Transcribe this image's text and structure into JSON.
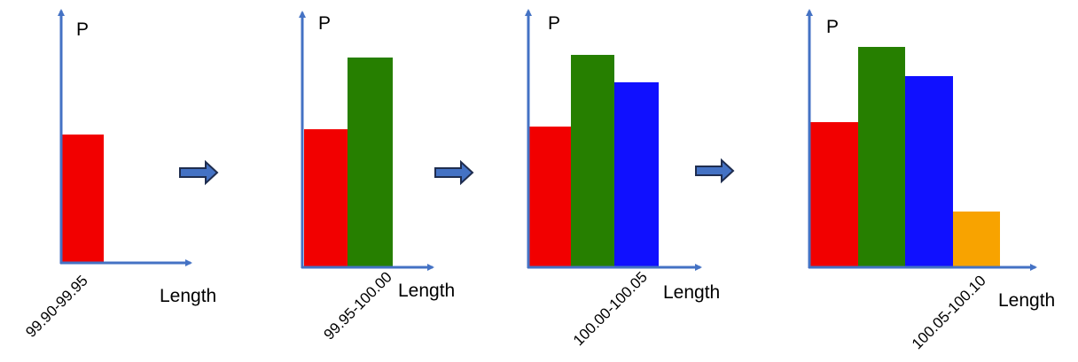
{
  "panels": [
    {
      "y_label": "P",
      "x_label": "Length",
      "bin_label": "99.90-99.95"
    },
    {
      "y_label": "P",
      "x_label": "Length",
      "bin_label": "99.95-100.00"
    },
    {
      "y_label": "P",
      "x_label": "Length",
      "bin_label": "100.00-100.05"
    },
    {
      "y_label": "P",
      "x_label": "Length",
      "bin_label": "100.05-100.10"
    }
  ]
}
